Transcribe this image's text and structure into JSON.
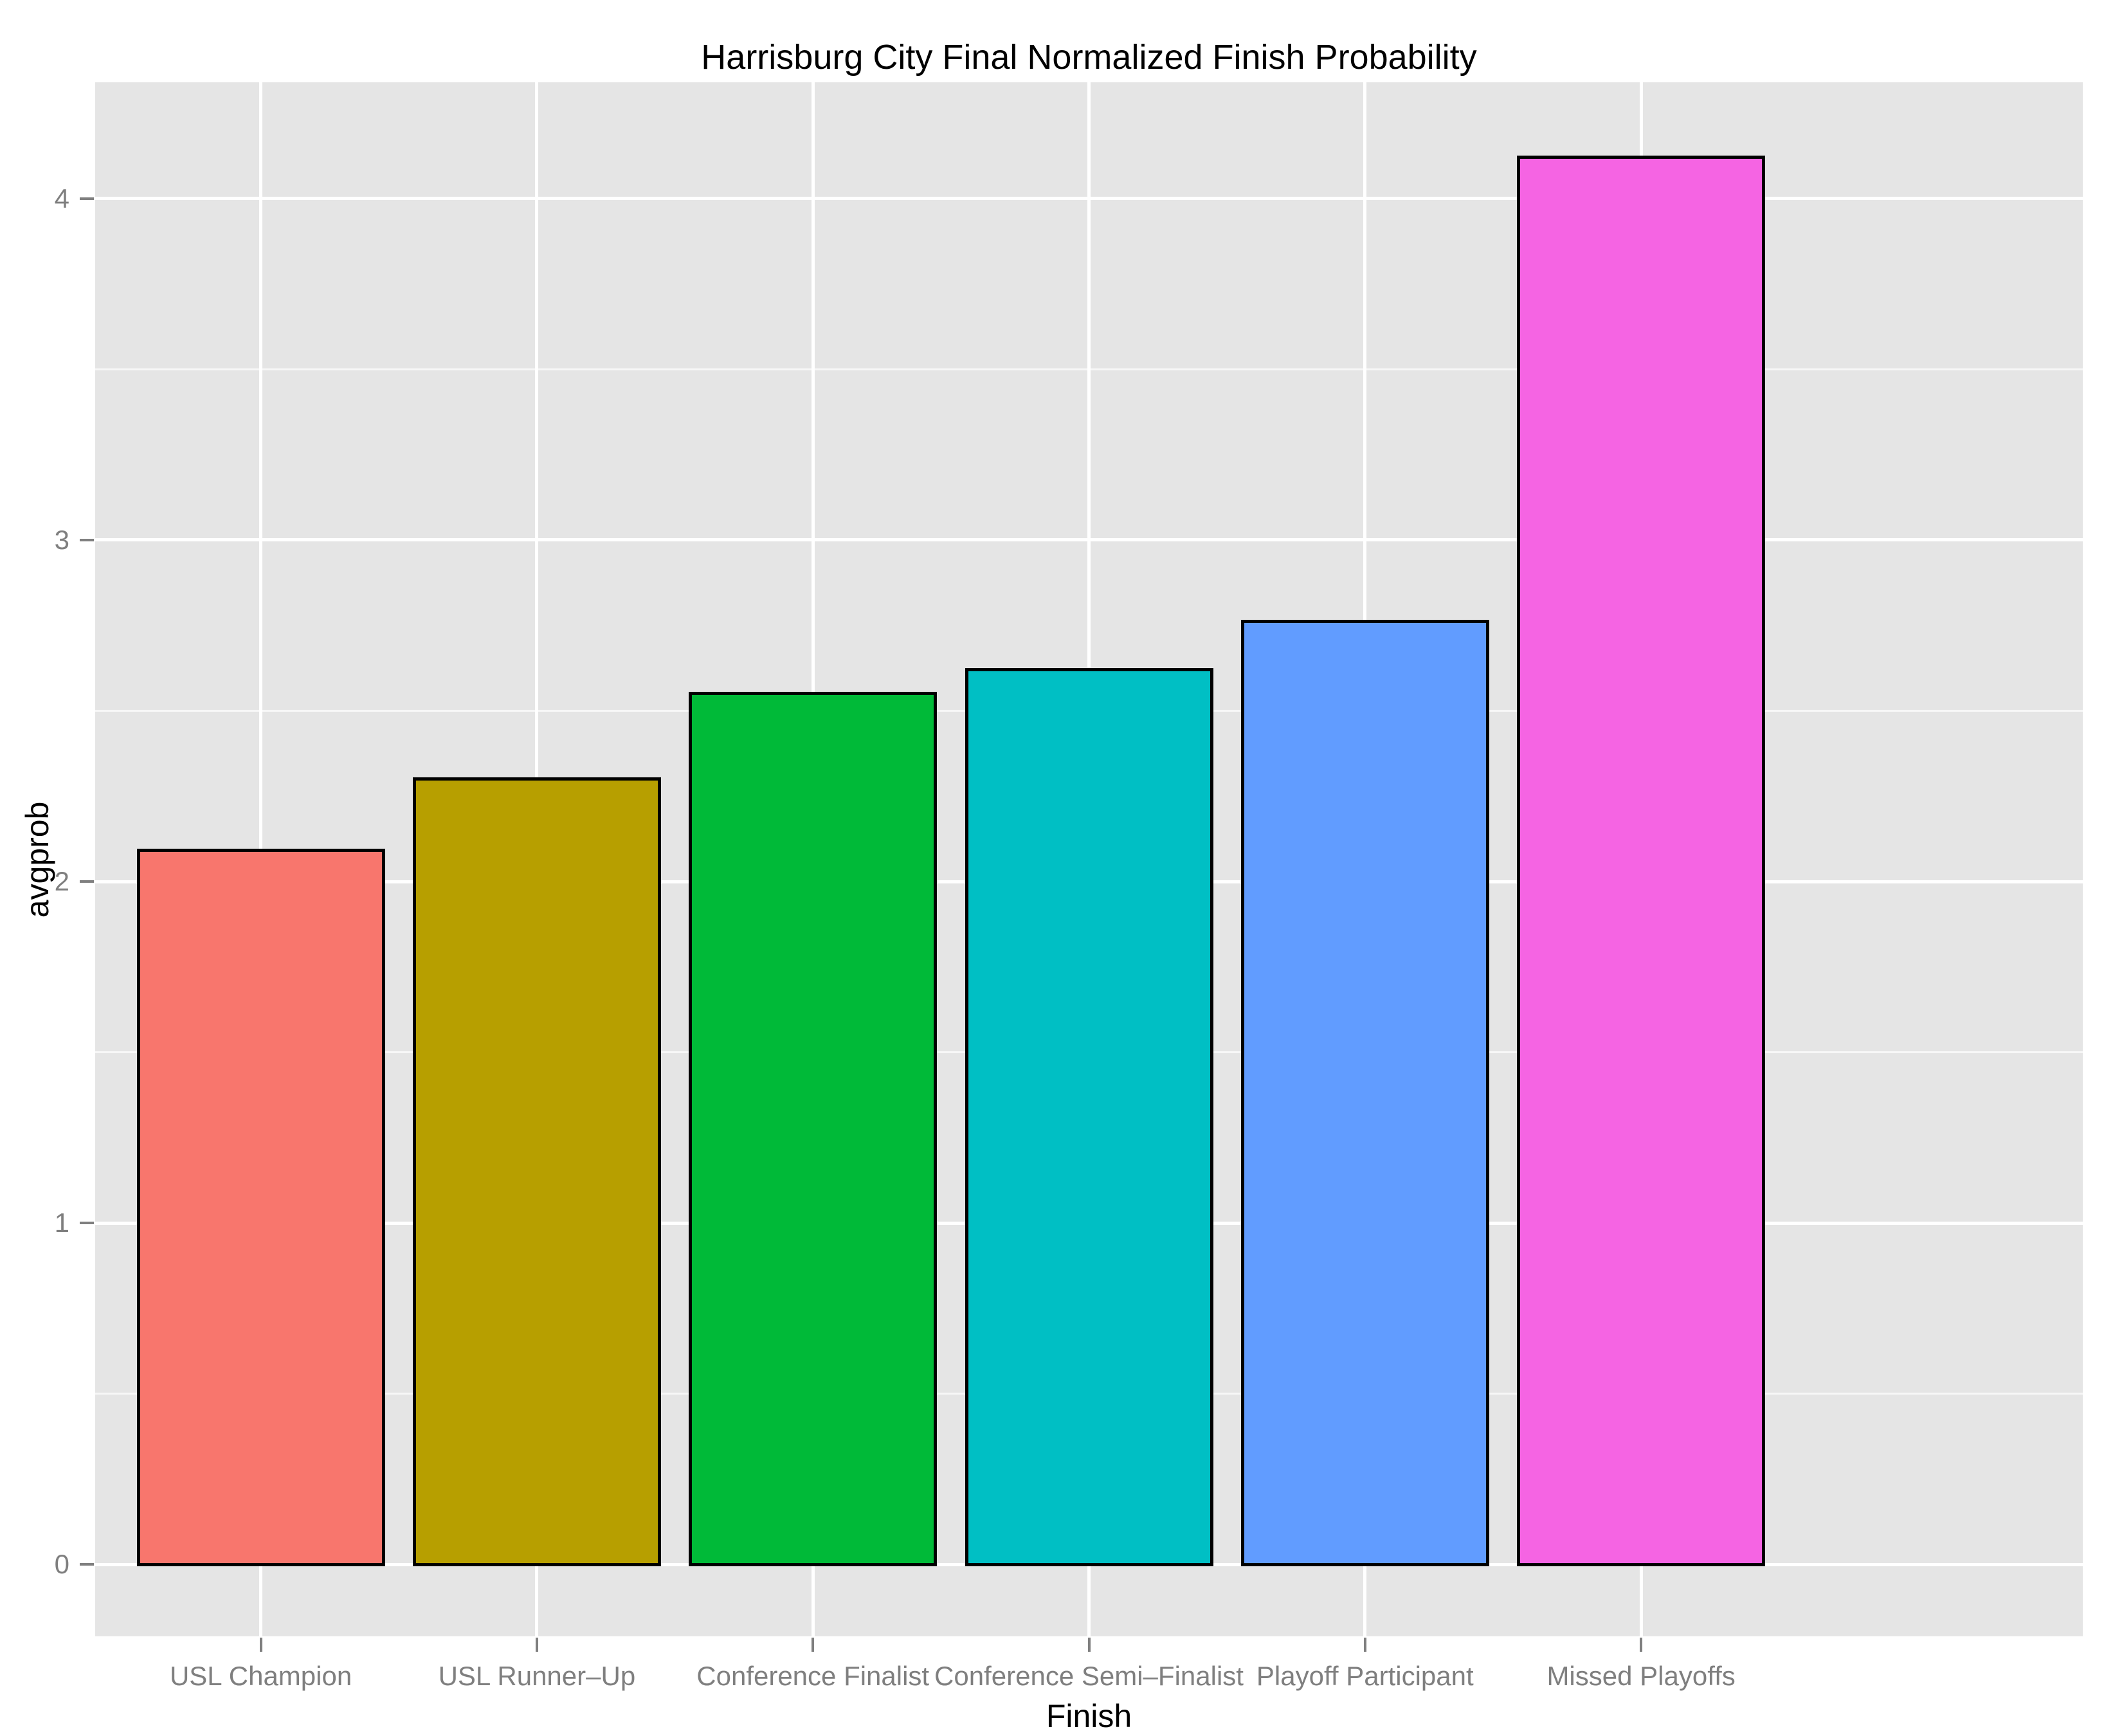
{
  "chart_data": {
    "type": "bar",
    "title": "Harrisburg City Final Normalized Finish Probability",
    "xlabel": "Finish",
    "ylabel": "avgprob",
    "categories": [
      "USL Champion",
      "USL Runner–Up",
      "Conference Finalist",
      "Conference Semi–Finalist",
      "Playoff Participant",
      "Missed Playoffs"
    ],
    "values": [
      2.09,
      2.3,
      2.55,
      2.62,
      2.76,
      4.12
    ],
    "bar_colors": [
      "#F8766D",
      "#B79F00",
      "#00BA38",
      "#00BFC4",
      "#619CFF",
      "#F564E3"
    ],
    "bar_outline_color": "#000000",
    "yticks": [
      0,
      1,
      2,
      3,
      4
    ],
    "ytick_labels": [
      "0",
      "1",
      "2",
      "3",
      "4"
    ],
    "yticks_minor": [
      0.5,
      1.5,
      2.5,
      3.5
    ],
    "ylim": [
      -0.21,
      4.34
    ],
    "grid": "on",
    "legend": "none",
    "panel_background_color": "#E5E5E5",
    "gridline_color": "#FFFFFF",
    "tick_label_color": "#7F7F7F",
    "axis_title_color": "#000000",
    "title_color": "#000000"
  }
}
